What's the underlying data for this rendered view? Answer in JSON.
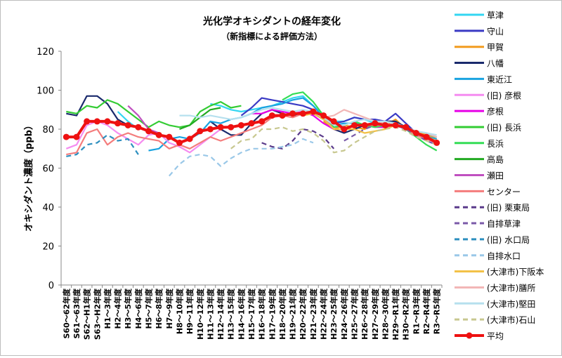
{
  "chart_data": {
    "type": "line",
    "title": "光化学オキシダントの経年変化",
    "subtitle": "（新指標による評価方法）",
    "xlabel": "",
    "ylabel": "オキシダント濃度（ppb）",
    "ylim": [
      0,
      120
    ],
    "yticks": [
      0,
      20,
      40,
      60,
      80,
      100,
      120
    ],
    "grid": false,
    "legend_position": "right",
    "categories": [
      "S60～62年度",
      "S61～63年度",
      "S62～H1年度",
      "S63～H2年度",
      "H1～3年度",
      "H2～4年度",
      "H3～5年度",
      "H4～6年度",
      "H5～7年度",
      "H6～8年度",
      "H7～9年度",
      "H8～10年度",
      "H9～11年度",
      "H10～12年度",
      "H11～13年度",
      "H12～14年度",
      "H13～15年度",
      "H14～16年度",
      "H15～17年度",
      "H16～18年度",
      "H17～19年度",
      "H18～20年度",
      "H19～21年度",
      "H20～22年度",
      "H21～23年度",
      "H22～24年度",
      "H23～25年度",
      "H24～26年度",
      "H25～27年度",
      "H26～28年度",
      "H27～29年度",
      "H28～30年度",
      "H29～R1年度",
      "H30～R2年度",
      "R1～R3年度",
      "R2～R4年度",
      "R3～R5年度"
    ],
    "series": [
      {
        "name": "草津",
        "color": "#33d6f2",
        "dash": "",
        "width": 2.2,
        "values": [
          null,
          null,
          null,
          null,
          null,
          89,
          84,
          80,
          null,
          null,
          null,
          null,
          null,
          null,
          93,
          92,
          90,
          89,
          90,
          91,
          92,
          94,
          96,
          97,
          92,
          87,
          84,
          84,
          86,
          85,
          83,
          81,
          82,
          80,
          78,
          77,
          76
        ]
      },
      {
        "name": "守山",
        "color": "#3a3ac4",
        "dash": "",
        "width": 2.2,
        "values": [
          null,
          null,
          null,
          null,
          null,
          null,
          null,
          null,
          null,
          null,
          null,
          null,
          null,
          null,
          null,
          null,
          null,
          87,
          91,
          96,
          95,
          94,
          93,
          92,
          90,
          86,
          83,
          84,
          86,
          85,
          85,
          84,
          88,
          83,
          78,
          75,
          73
        ]
      },
      {
        "name": "甲賀",
        "color": "#f29b1e",
        "dash": "",
        "width": 2.2,
        "values": [
          null,
          null,
          null,
          null,
          null,
          null,
          null,
          null,
          null,
          null,
          null,
          null,
          null,
          null,
          null,
          null,
          null,
          null,
          null,
          null,
          null,
          null,
          null,
          null,
          null,
          84,
          80,
          82,
          81,
          80,
          83,
          82,
          85,
          80,
          79,
          77,
          75
        ]
      },
      {
        "name": "八幡",
        "color": "#1a2a6c",
        "dash": "",
        "width": 2.2,
        "values": [
          88,
          87,
          97,
          97,
          93,
          85,
          82,
          null,
          null,
          null,
          null,
          null,
          null,
          null,
          84,
          80,
          77,
          77,
          83,
          88,
          90,
          88,
          87,
          88,
          88,
          85,
          80,
          78,
          80,
          82,
          83,
          84,
          84,
          81,
          78,
          76,
          73
        ]
      },
      {
        "name": "東近江",
        "color": "#19a3e0",
        "dash": "",
        "width": 2.2,
        "values": [
          null,
          null,
          null,
          null,
          null,
          null,
          null,
          null,
          69,
          70,
          75,
          76,
          75,
          78,
          84,
          83,
          85,
          86,
          88,
          91,
          92,
          93,
          95,
          96,
          92,
          86,
          82,
          83,
          83,
          82,
          82,
          81,
          82,
          80,
          78,
          76,
          75
        ]
      },
      {
        "name": "(旧) 彦根",
        "color": "#f58cf0",
        "dash": "",
        "width": 2.2,
        "values": [
          70,
          72,
          82,
          84,
          82,
          78,
          75,
          72,
          77,
          78,
          73,
          71,
          68,
          72,
          76,
          80,
          82,
          null,
          null,
          null,
          null,
          null,
          null,
          null,
          null,
          null,
          null,
          null,
          null,
          null,
          null,
          null,
          null,
          null,
          null,
          null,
          null
        ]
      },
      {
        "name": "彦根",
        "color": "#e600e6",
        "dash": "",
        "width": 2.2,
        "values": [
          null,
          null,
          null,
          null,
          null,
          null,
          null,
          null,
          null,
          null,
          null,
          null,
          null,
          null,
          null,
          null,
          null,
          null,
          88,
          88,
          90,
          89,
          88,
          89,
          87,
          83,
          80,
          80,
          82,
          82,
          81,
          81,
          82,
          80,
          77,
          75,
          73
        ]
      },
      {
        "name": "(旧) 長浜",
        "color": "#33cc33",
        "dash": "",
        "width": 2.2,
        "values": [
          89,
          88,
          92,
          91,
          95,
          93,
          89,
          85,
          81,
          84,
          82,
          81,
          82,
          89,
          92,
          94,
          91,
          92,
          null,
          null,
          null,
          null,
          null,
          null,
          null,
          null,
          null,
          null,
          null,
          null,
          null,
          null,
          null,
          null,
          null,
          null,
          null
        ]
      },
      {
        "name": "長浜",
        "color": "#33dd55",
        "dash": "",
        "width": 2.2,
        "values": [
          null,
          null,
          null,
          null,
          null,
          null,
          null,
          null,
          null,
          null,
          null,
          null,
          null,
          null,
          null,
          null,
          null,
          null,
          null,
          null,
          null,
          95,
          98,
          99,
          94,
          87,
          81,
          82,
          84,
          82,
          81,
          82,
          82,
          80,
          76,
          72,
          69
        ]
      },
      {
        "name": "高島",
        "color": "#22aa22",
        "dash": "",
        "width": 2.2,
        "values": [
          null,
          null,
          null,
          null,
          null,
          null,
          null,
          null,
          null,
          null,
          null,
          80,
          82,
          86,
          90,
          91,
          null,
          null,
          null,
          null,
          null,
          null,
          null,
          null,
          null,
          null,
          null,
          null,
          null,
          null,
          null,
          null,
          null,
          null,
          null,
          null,
          null
        ]
      },
      {
        "name": "瀬田",
        "color": "#c050c0",
        "dash": "",
        "width": 2.2,
        "values": [
          null,
          null,
          null,
          null,
          null,
          null,
          92,
          87,
          80,
          78,
          null,
          null,
          null,
          null,
          null,
          null,
          null,
          null,
          null,
          null,
          null,
          null,
          null,
          null,
          null,
          null,
          null,
          null,
          null,
          null,
          null,
          null,
          null,
          null,
          null,
          null,
          null
        ]
      },
      {
        "name": "センター",
        "color": "#f47c7c",
        "dash": "",
        "width": 2.2,
        "values": [
          67,
          68,
          78,
          80,
          72,
          76,
          78,
          76,
          75,
          74,
          70,
          72,
          70,
          73,
          76,
          74,
          76,
          78,
          80,
          82,
          86,
          87,
          86,
          88,
          90,
          86,
          80,
          80,
          82,
          82,
          82,
          82,
          82,
          80,
          77,
          75,
          73
        ]
      },
      {
        "name": "(旧) 栗東局",
        "color": "#5a3a8a",
        "dash": "7,5",
        "width": 2.2,
        "values": [
          null,
          null,
          null,
          null,
          null,
          null,
          null,
          null,
          null,
          null,
          null,
          null,
          null,
          null,
          null,
          null,
          null,
          null,
          null,
          73,
          71,
          70,
          74,
          80,
          79,
          76,
          70,
          null,
          null,
          null,
          null,
          null,
          null,
          null,
          null,
          null,
          null
        ]
      },
      {
        "name": "自排草津",
        "color": "#7a5aa8",
        "dash": "7,5",
        "width": 2.2,
        "values": [
          null,
          null,
          null,
          null,
          null,
          null,
          null,
          null,
          null,
          null,
          null,
          null,
          null,
          null,
          null,
          null,
          null,
          null,
          null,
          null,
          null,
          null,
          null,
          null,
          null,
          null,
          null,
          74,
          77,
          80,
          82,
          83,
          82,
          80,
          77,
          74,
          72
        ]
      },
      {
        "name": "(旧) 水口局",
        "color": "#2d8fbf",
        "dash": "7,5",
        "width": 2.2,
        "values": [
          66,
          67,
          72,
          73,
          77,
          74,
          75,
          67,
          null,
          null,
          null,
          null,
          null,
          null,
          null,
          null,
          null,
          null,
          null,
          null,
          null,
          null,
          null,
          null,
          null,
          null,
          null,
          null,
          null,
          null,
          null,
          null,
          null,
          null,
          null,
          null,
          null
        ]
      },
      {
        "name": "自排水口",
        "color": "#9ac8e8",
        "dash": "7,5",
        "width": 2.2,
        "values": [
          null,
          null,
          null,
          null,
          null,
          null,
          null,
          null,
          null,
          null,
          56,
          62,
          66,
          67,
          66,
          61,
          65,
          68,
          70,
          70,
          70,
          71,
          72,
          75,
          73,
          null,
          null,
          null,
          null,
          null,
          null,
          null,
          null,
          null,
          null,
          null,
          null
        ]
      },
      {
        "name": "(大津市)下阪本",
        "color": "#f2c044",
        "dash": "",
        "width": 2.2,
        "values": [
          null,
          null,
          null,
          null,
          null,
          null,
          null,
          null,
          null,
          null,
          null,
          null,
          null,
          null,
          null,
          null,
          null,
          null,
          null,
          null,
          null,
          null,
          null,
          87,
          88,
          85,
          80,
          80,
          80,
          78,
          79,
          80,
          82,
          81,
          78,
          76,
          74
        ]
      },
      {
        "name": "(大津市)膳所",
        "color": "#f2b6b6",
        "dash": "",
        "width": 2.2,
        "values": [
          null,
          null,
          null,
          null,
          null,
          null,
          null,
          null,
          null,
          null,
          null,
          null,
          null,
          null,
          null,
          null,
          null,
          null,
          null,
          null,
          null,
          null,
          null,
          null,
          null,
          86,
          87,
          90,
          88,
          86,
          84,
          83,
          82,
          81,
          79,
          78,
          76
        ]
      },
      {
        "name": "(大津市)堅田",
        "color": "#b6e0ee",
        "dash": "",
        "width": 2.2,
        "values": [
          null,
          null,
          null,
          null,
          null,
          null,
          null,
          null,
          null,
          null,
          null,
          87,
          87,
          86,
          87,
          86,
          85,
          86,
          88,
          90,
          91,
          90,
          89,
          90,
          89,
          86,
          82,
          82,
          84,
          85,
          84,
          84,
          83,
          81,
          79,
          78,
          77
        ]
      },
      {
        "name": "(大津市)石山",
        "color": "#c8c890",
        "dash": "7,5",
        "width": 2.2,
        "values": [
          null,
          null,
          null,
          null,
          null,
          null,
          null,
          null,
          null,
          null,
          null,
          null,
          null,
          null,
          null,
          null,
          70,
          74,
          75,
          80,
          80,
          81,
          79,
          80,
          78,
          74,
          68,
          69,
          73,
          76,
          79,
          80,
          81,
          79,
          76,
          74,
          72
        ]
      },
      {
        "name": "平均",
        "color": "#ee1111",
        "dash": "",
        "width": 4,
        "marker": true,
        "values": [
          76,
          76,
          84,
          84,
          84,
          83,
          82,
          81,
          79,
          77,
          76,
          73,
          75,
          79,
          80,
          81,
          81,
          82,
          83,
          84,
          87,
          87,
          88,
          88,
          89,
          87,
          84,
          80,
          82,
          82,
          83,
          82,
          82,
          81,
          78,
          76,
          73
        ]
      }
    ]
  }
}
